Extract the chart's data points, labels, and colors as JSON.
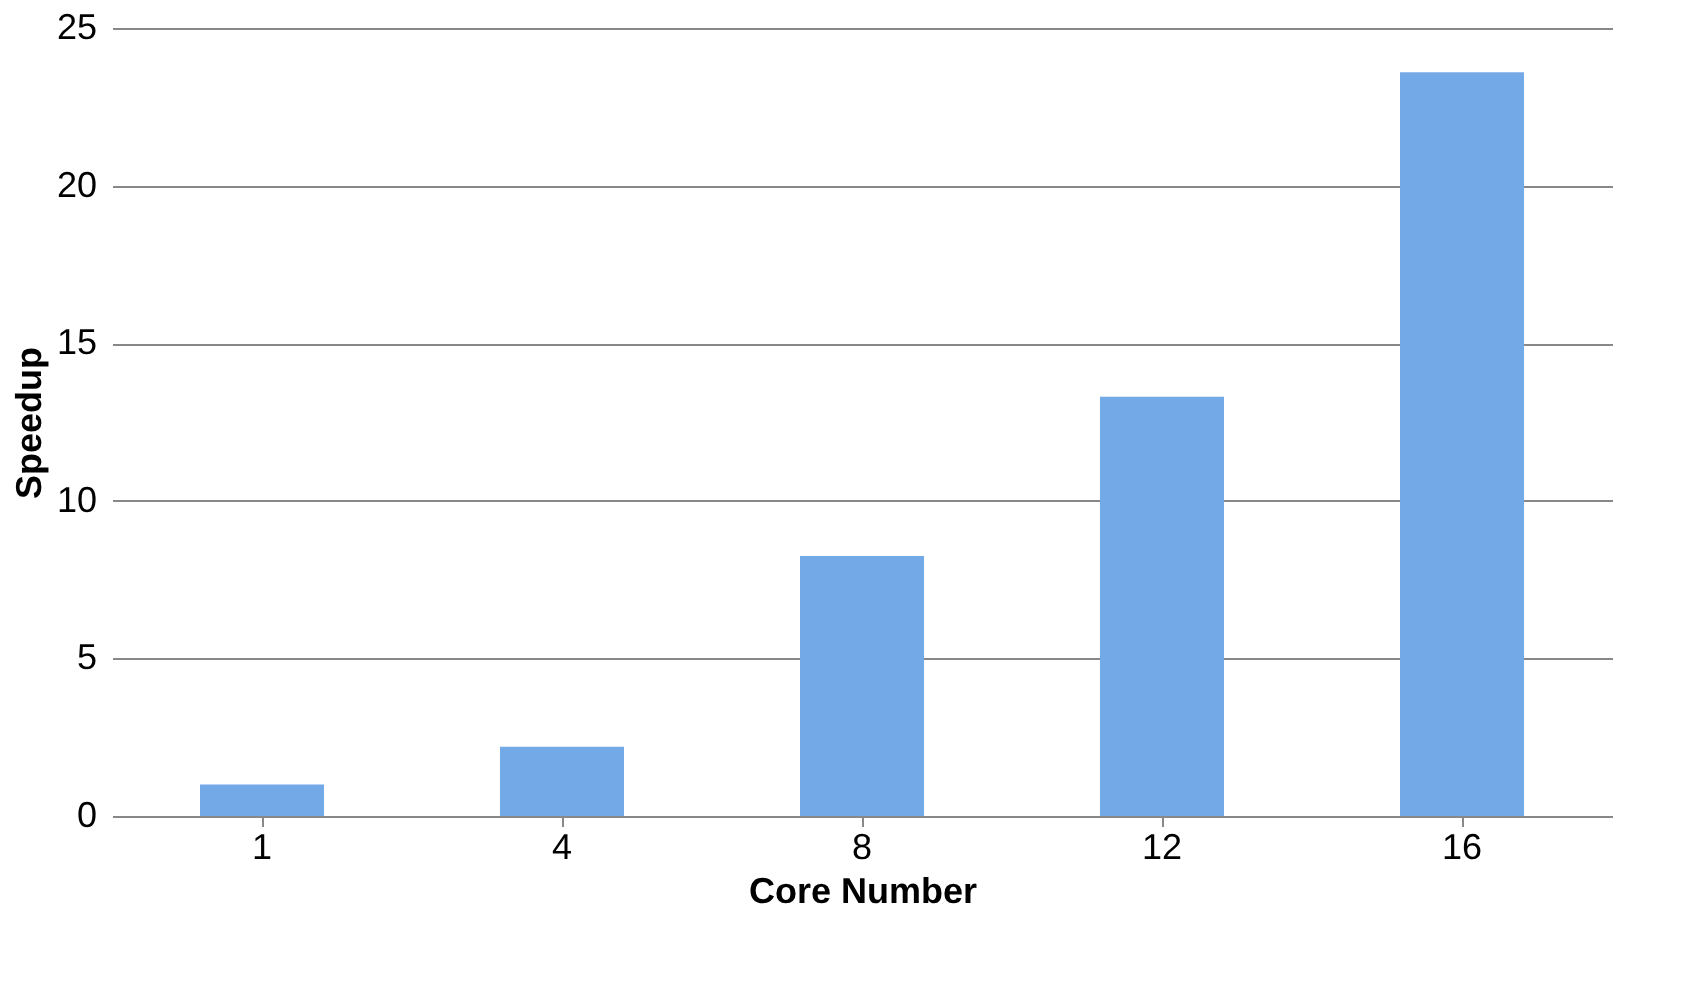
{
  "chart_data": {
    "type": "bar",
    "xlabel": "Core Number",
    "ylabel": "Speedup",
    "categories": [
      "1",
      "4",
      "8",
      "12",
      "16"
    ],
    "values": [
      1.0,
      2.2,
      8.25,
      13.3,
      23.6
    ],
    "color": "#74a9e8",
    "ylim": [
      0,
      25
    ],
    "yticks": [
      0,
      5,
      10,
      15,
      20,
      25
    ],
    "grid": "y"
  }
}
